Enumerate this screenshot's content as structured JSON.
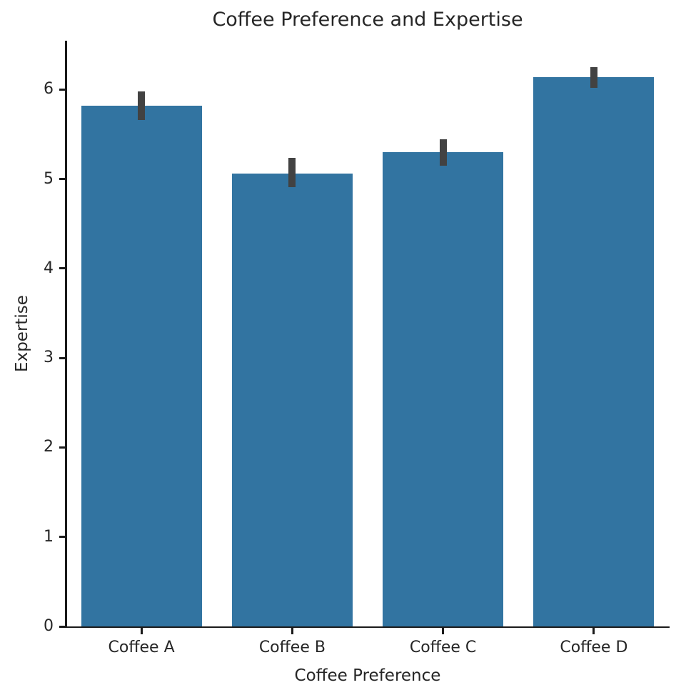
{
  "figure": {
    "title": "Coffee Preference and Expertise",
    "xlabel": "Coffee Preference",
    "ylabel": "Expertise"
  },
  "chart_data": {
    "type": "bar",
    "title": "Coffee Preference and Expertise",
    "xlabel": "Coffee Preference",
    "ylabel": "Expertise",
    "categories": [
      "Coffee A",
      "Coffee B",
      "Coffee C",
      "Coffee D"
    ],
    "values": [
      5.82,
      5.06,
      5.3,
      6.14
    ],
    "error_intervals": [
      [
        5.66,
        5.98
      ],
      [
        4.91,
        5.24
      ],
      [
        5.15,
        5.44
      ],
      [
        6.02,
        6.25
      ]
    ],
    "yticks": [
      0,
      1,
      2,
      3,
      4,
      5,
      6
    ],
    "ylim": [
      0,
      6.545
    ],
    "grid": false,
    "legend": "none",
    "bar_color": "#3274a1",
    "error_bar_color": "#424242",
    "axis_color": "#1a1a1a",
    "text_color": "#262626",
    "background_color": "#ffffff"
  }
}
